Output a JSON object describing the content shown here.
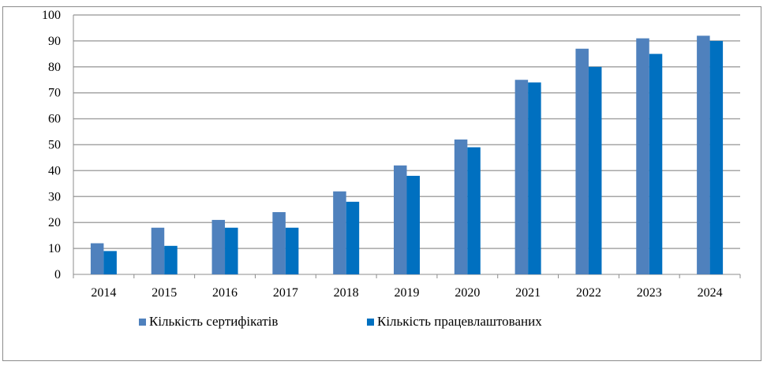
{
  "chart_data": {
    "type": "bar",
    "categories": [
      "2014",
      "2015",
      "2016",
      "2017",
      "2018",
      "2019",
      "2020",
      "2021",
      "2022",
      "2023",
      "2024"
    ],
    "series": [
      {
        "name": "Кількість сертифікатів",
        "color": "#4f81bd",
        "values": [
          12,
          18,
          21,
          24,
          32,
          42,
          52,
          75,
          87,
          91,
          92
        ]
      },
      {
        "name": "Кількість працевлаштованих",
        "color": "#0070c0",
        "values": [
          9,
          11,
          18,
          18,
          28,
          38,
          49,
          74,
          80,
          85,
          90
        ]
      }
    ],
    "yticks": [
      "0",
      "10",
      "20",
      "30",
      "40",
      "50",
      "60",
      "70",
      "80",
      "90",
      "100"
    ],
    "ylim": [
      0,
      100
    ],
    "grid": true,
    "legend": "bottom",
    "title": "",
    "xlabel": "",
    "ylabel": ""
  }
}
